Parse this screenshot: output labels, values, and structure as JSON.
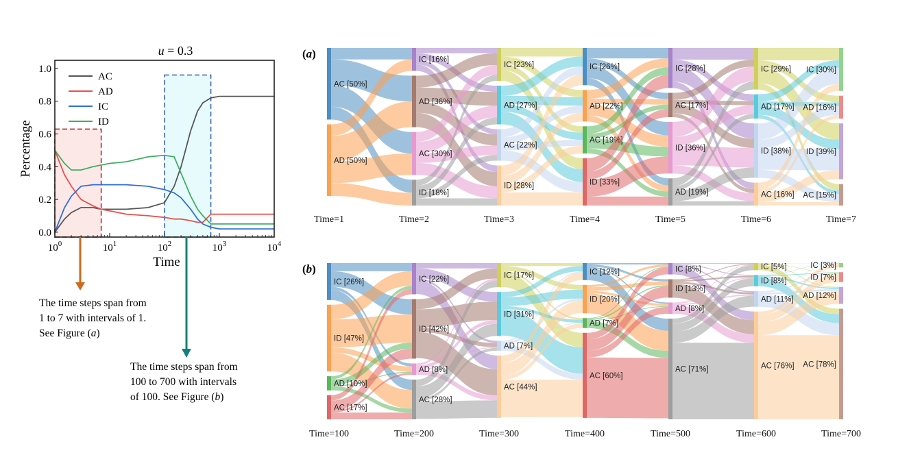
{
  "colors": {
    "AC": "#555555",
    "AD": "#e8504a",
    "IC": "#2f6fd6",
    "ID": "#3fae5f",
    "arrow_a": "#d0691a",
    "arrow_b": "#15807b",
    "box_a_fill": "#fde8e8",
    "box_a_border": "#a02020",
    "box_b_fill": "#e7fbfd",
    "box_b_border": "#2f5fb8"
  },
  "chart_data": [
    {
      "type": "line",
      "title": "u = 0.3",
      "xlabel": "Time",
      "ylabel": "Percentage",
      "xscale": "log",
      "xlim": [
        1,
        10000
      ],
      "ylim": [
        -0.03,
        1.05
      ],
      "xticks": [
        "10^0",
        "10^1",
        "10^2",
        "10^3",
        "10^4"
      ],
      "yticks": [
        "0.0",
        "0.2",
        "0.4",
        "0.6",
        "0.8",
        "1.0"
      ],
      "legend": [
        "AC",
        "AD",
        "IC",
        "ID"
      ],
      "legend_position": "top-left",
      "x": [
        1,
        1.5,
        2,
        3,
        5,
        7,
        10,
        20,
        50,
        100,
        150,
        200,
        300,
        400,
        500,
        700,
        1000,
        3000,
        10000
      ],
      "series": [
        {
          "name": "AC",
          "values": [
            0.0,
            0.08,
            0.12,
            0.15,
            0.15,
            0.14,
            0.14,
            0.14,
            0.15,
            0.18,
            0.28,
            0.4,
            0.62,
            0.74,
            0.79,
            0.82,
            0.83,
            0.83,
            0.83
          ]
        },
        {
          "name": "AD",
          "values": [
            0.5,
            0.35,
            0.28,
            0.2,
            0.16,
            0.14,
            0.13,
            0.11,
            0.1,
            0.09,
            0.08,
            0.08,
            0.07,
            0.06,
            0.06,
            0.11,
            0.11,
            0.11,
            0.11
          ]
        },
        {
          "name": "IC",
          "values": [
            0.0,
            0.15,
            0.22,
            0.28,
            0.29,
            0.29,
            0.29,
            0.29,
            0.28,
            0.26,
            0.24,
            0.21,
            0.14,
            0.08,
            0.05,
            0.03,
            0.02,
            0.02,
            0.02
          ]
        },
        {
          "name": "ID",
          "values": [
            0.5,
            0.42,
            0.38,
            0.38,
            0.4,
            0.41,
            0.42,
            0.43,
            0.46,
            0.47,
            0.46,
            0.36,
            0.22,
            0.14,
            0.1,
            0.05,
            0.05,
            0.05,
            0.05
          ]
        }
      ],
      "highlight_boxes": [
        {
          "x_range": [
            1,
            7
          ],
          "y_range": [
            0,
            0.63
          ],
          "style": "dashed",
          "note": "The time steps span from 1 to 7 with intervals of 1. See Figure (a)"
        },
        {
          "x_range": [
            100,
            700
          ],
          "y_range": [
            0,
            0.96
          ],
          "style": "dashed",
          "note": "The time steps span from 100 to 700 with intervals of 100. See Figure (b)"
        }
      ]
    },
    {
      "type": "sankey",
      "panel_label": "(a)",
      "columns": [
        {
          "time_label": "Time=1",
          "nodes": [
            {
              "label": "AC [50%]",
              "value": 50,
              "color": "#4e8fc2"
            },
            {
              "label": "AD [50%]",
              "value": 50,
              "color": "#fba150"
            }
          ]
        },
        {
          "time_label": "Time=2",
          "nodes": [
            {
              "label": "IC [16%]",
              "value": 16,
              "color": "#a783c9"
            },
            {
              "label": "AD [36%]",
              "value": 36,
              "color": "#a57a70"
            },
            {
              "label": "AC [30%]",
              "value": 30,
              "color": "#e59ad0"
            },
            {
              "label": "ID [18%]",
              "value": 18,
              "color": "#9e9e9e"
            }
          ]
        },
        {
          "time_label": "Time=3",
          "nodes": [
            {
              "label": "IC [23%]",
              "value": 23,
              "color": "#d0cf5c"
            },
            {
              "label": "AD [27%]",
              "value": 27,
              "color": "#5bcbdb"
            },
            {
              "label": "AC [22%]",
              "value": 22,
              "color": "#c3d6ef"
            },
            {
              "label": "ID [28%]",
              "value": 28,
              "color": "#fccd9c"
            }
          ]
        },
        {
          "time_label": "Time=4",
          "nodes": [
            {
              "label": "IC [26%]",
              "value": 26,
              "color": "#4e8fc2"
            },
            {
              "label": "AD [22%]",
              "value": 22,
              "color": "#fba150"
            },
            {
              "label": "AC [19%]",
              "value": 19,
              "color": "#5cb65c"
            },
            {
              "label": "ID [33%]",
              "value": 33,
              "color": "#e06767"
            }
          ]
        },
        {
          "time_label": "Time=5",
          "nodes": [
            {
              "label": "IC [28%]",
              "value": 28,
              "color": "#a783c9"
            },
            {
              "label": "AC [17%]",
              "value": 17,
              "color": "#a57a70"
            },
            {
              "label": "ID [36%]",
              "value": 36,
              "color": "#e59ad0"
            },
            {
              "label": "AD [19%]",
              "value": 19,
              "color": "#9e9e9e"
            }
          ]
        },
        {
          "time_label": "Time=6",
          "nodes": [
            {
              "label": "IC [29%]",
              "value": 29,
              "color": "#d0cf5c"
            },
            {
              "label": "AD [17%]",
              "value": 17,
              "color": "#5bcbdb"
            },
            {
              "label": "ID [38%]",
              "value": 38,
              "color": "#c3d6ef"
            },
            {
              "label": "AC [16%]",
              "value": 16,
              "color": "#fccd9c"
            }
          ]
        },
        {
          "time_label": "Time=7",
          "nodes": [
            {
              "label": "IC [30%]",
              "value": 30,
              "color": "#8fd48f"
            },
            {
              "label": "AD [16%]",
              "value": 16,
              "color": "#f08a8a"
            },
            {
              "label": "ID [39%]",
              "value": 39,
              "color": "#c3a4dc"
            },
            {
              "label": "AC [15%]",
              "value": 15,
              "color": "#c79a90"
            }
          ]
        }
      ]
    },
    {
      "type": "sankey",
      "panel_label": "(b)",
      "columns": [
        {
          "time_label": "Time=100",
          "nodes": [
            {
              "label": "IC [26%]",
              "value": 26,
              "color": "#4e8fc2"
            },
            {
              "label": "ID [47%]",
              "value": 47,
              "color": "#fba150"
            },
            {
              "label": "AD [10%]",
              "value": 10,
              "color": "#5cb65c"
            },
            {
              "label": "AC [17%]",
              "value": 17,
              "color": "#e06767"
            }
          ]
        },
        {
          "time_label": "Time=200",
          "nodes": [
            {
              "label": "IC [22%]",
              "value": 22,
              "color": "#a783c9"
            },
            {
              "label": "ID [42%]",
              "value": 42,
              "color": "#a57a70"
            },
            {
              "label": "AD [8%]",
              "value": 8,
              "color": "#e59ad0"
            },
            {
              "label": "AC [28%]",
              "value": 28,
              "color": "#9e9e9e"
            }
          ]
        },
        {
          "time_label": "Time=300",
          "nodes": [
            {
              "label": "IC [17%]",
              "value": 17,
              "color": "#d0cf5c"
            },
            {
              "label": "ID [31%]",
              "value": 31,
              "color": "#5bcbdb"
            },
            {
              "label": "AD [7%]",
              "value": 7,
              "color": "#c3d6ef"
            },
            {
              "label": "AC [44%]",
              "value": 44,
              "color": "#fccd9c"
            }
          ]
        },
        {
          "time_label": "Time=400",
          "nodes": [
            {
              "label": "IC [12%]",
              "value": 12,
              "color": "#4e8fc2"
            },
            {
              "label": "ID [20%]",
              "value": 20,
              "color": "#fba150"
            },
            {
              "label": "AD [7%]",
              "value": 7,
              "color": "#5cb65c"
            },
            {
              "label": "AC [60%]",
              "value": 60,
              "color": "#e06767"
            }
          ]
        },
        {
          "time_label": "Time=500",
          "nodes": [
            {
              "label": "IC [8%]",
              "value": 8,
              "color": "#a783c9"
            },
            {
              "label": "ID [13%]",
              "value": 13,
              "color": "#a57a70"
            },
            {
              "label": "AD [8%]",
              "value": 8,
              "color": "#e59ad0"
            },
            {
              "label": "AC [71%]",
              "value": 71,
              "color": "#9e9e9e"
            }
          ]
        },
        {
          "time_label": "Time=600",
          "nodes": [
            {
              "label": "IC [5%]",
              "value": 5,
              "color": "#d0cf5c"
            },
            {
              "label": "ID [8%]",
              "value": 8,
              "color": "#5bcbdb"
            },
            {
              "label": "AD [11%]",
              "value": 11,
              "color": "#c3d6ef"
            },
            {
              "label": "AC [76%]",
              "value": 76,
              "color": "#fccd9c"
            }
          ]
        },
        {
          "time_label": "Time=700",
          "nodes": [
            {
              "label": "IC [3%]",
              "value": 3,
              "color": "#8fd48f"
            },
            {
              "label": "ID [7%]",
              "value": 7,
              "color": "#f08a8a"
            },
            {
              "label": "AD [12%]",
              "value": 12,
              "color": "#c3a4dc"
            },
            {
              "label": "AC [78%]",
              "value": 78,
              "color": "#c79a90"
            }
          ]
        }
      ]
    }
  ]
}
